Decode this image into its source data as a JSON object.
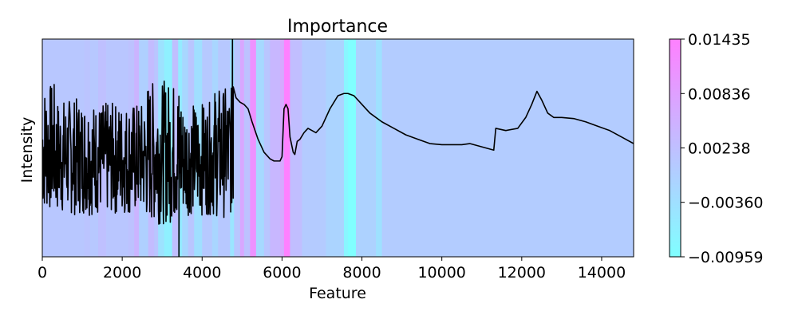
{
  "chart_data": {
    "type": "line",
    "title": "Importance",
    "xlabel": "Feature",
    "ylabel": "Intensity",
    "xlim": [
      0,
      14800
    ],
    "ylim": [
      0,
      1
    ],
    "x_ticks": [
      0,
      2000,
      4000,
      6000,
      8000,
      10000,
      12000,
      14000
    ],
    "x_tick_labels": [
      "0",
      "2000",
      "4000",
      "6000",
      "8000",
      "10000",
      "12000",
      "14000"
    ],
    "y_ticks_shown": false,
    "grid": false,
    "legend": "none",
    "colorbar": {
      "min": -0.00959,
      "max": 0.01435,
      "ticks": [
        0.01435,
        0.00836,
        0.00238,
        -0.0036,
        -0.00959
      ],
      "tick_labels": [
        "0.01435",
        "0.00836",
        "0.00238",
        "−0.00360",
        "−0.00959"
      ],
      "colormap": "cool",
      "alpha": 0.5
    },
    "importance_bands": [
      {
        "x0": 0,
        "x1": 1050,
        "value": 0.0009
      },
      {
        "x0": 1050,
        "x1": 1200,
        "value": 0.0016
      },
      {
        "x0": 1200,
        "x1": 1400,
        "value": 0.0008
      },
      {
        "x0": 1400,
        "x1": 1600,
        "value": 0.0022
      },
      {
        "x0": 1600,
        "x1": 2150,
        "value": 0.0012
      },
      {
        "x0": 2150,
        "x1": 2300,
        "value": 0.0019
      },
      {
        "x0": 2300,
        "x1": 2420,
        "value": 0.0045
      },
      {
        "x0": 2420,
        "x1": 2650,
        "value": -0.0008
      },
      {
        "x0": 2650,
        "x1": 2800,
        "value": 0.003
      },
      {
        "x0": 2800,
        "x1": 2900,
        "value": 0.0012
      },
      {
        "x0": 2900,
        "x1": 3050,
        "value": -0.0042
      },
      {
        "x0": 3050,
        "x1": 3250,
        "value": -0.0067
      },
      {
        "x0": 3250,
        "x1": 3400,
        "value": 0.0024
      },
      {
        "x0": 3400,
        "x1": 3500,
        "value": -0.0058
      },
      {
        "x0": 3500,
        "x1": 3650,
        "value": -0.002
      },
      {
        "x0": 3650,
        "x1": 3800,
        "value": 0.0011
      },
      {
        "x0": 3800,
        "x1": 4000,
        "value": -0.0035
      },
      {
        "x0": 4000,
        "x1": 4250,
        "value": 0.0005
      },
      {
        "x0": 4250,
        "x1": 4400,
        "value": -0.0018
      },
      {
        "x0": 4400,
        "x1": 4700,
        "value": 0.0008
      },
      {
        "x0": 4700,
        "x1": 4800,
        "value": -0.0046
      },
      {
        "x0": 4800,
        "x1": 4950,
        "value": 0.001
      },
      {
        "x0": 4950,
        "x1": 5050,
        "value": 0.007
      },
      {
        "x0": 5050,
        "x1": 5200,
        "value": 0.002
      },
      {
        "x0": 5200,
        "x1": 5350,
        "value": 0.011
      },
      {
        "x0": 5350,
        "x1": 5550,
        "value": -0.0025
      },
      {
        "x0": 5550,
        "x1": 5700,
        "value": 0.0012
      },
      {
        "x0": 5700,
        "x1": 5950,
        "value": 0.004
      },
      {
        "x0": 5950,
        "x1": 6050,
        "value": 0.0065
      },
      {
        "x0": 6050,
        "x1": 6200,
        "value": 0.0143
      },
      {
        "x0": 6200,
        "x1": 6500,
        "value": 0.0026
      },
      {
        "x0": 6500,
        "x1": 7100,
        "value": 0.0002
      },
      {
        "x0": 7100,
        "x1": 7550,
        "value": -0.0015
      },
      {
        "x0": 7550,
        "x1": 7650,
        "value": -0.0078
      },
      {
        "x0": 7650,
        "x1": 7850,
        "value": -0.0095
      },
      {
        "x0": 7850,
        "x1": 8350,
        "value": -0.0012
      },
      {
        "x0": 8350,
        "x1": 8500,
        "value": -0.004
      },
      {
        "x0": 8500,
        "x1": 14800,
        "value": 0.0
      }
    ],
    "series": [
      {
        "noisy_segment": {
          "x_start": 0,
          "x_end": 4780,
          "seed": 7
        },
        "spikes": [
          {
            "x": 4760,
            "y": 1.02
          },
          {
            "x": 4778,
            "y": 0.78
          },
          {
            "x": 3420,
            "y": -0.02
          },
          {
            "x": 3300,
            "y": 0.25
          }
        ],
        "points": [
          [
            4780,
            0.78
          ],
          [
            4850,
            0.73
          ],
          [
            4950,
            0.71
          ],
          [
            5050,
            0.7
          ],
          [
            5150,
            0.68
          ],
          [
            5250,
            0.62
          ],
          [
            5400,
            0.54
          ],
          [
            5550,
            0.48
          ],
          [
            5700,
            0.45
          ],
          [
            5800,
            0.44
          ],
          [
            5950,
            0.44
          ],
          [
            6000,
            0.46
          ],
          [
            6050,
            0.68
          ],
          [
            6100,
            0.7
          ],
          [
            6150,
            0.68
          ],
          [
            6200,
            0.55
          ],
          [
            6280,
            0.48
          ],
          [
            6320,
            0.47
          ],
          [
            6380,
            0.53
          ],
          [
            6450,
            0.54
          ],
          [
            6550,
            0.57
          ],
          [
            6650,
            0.59
          ],
          [
            6750,
            0.58
          ],
          [
            6850,
            0.57
          ],
          [
            7000,
            0.6
          ],
          [
            7200,
            0.68
          ],
          [
            7400,
            0.74
          ],
          [
            7550,
            0.75
          ],
          [
            7650,
            0.75
          ],
          [
            7800,
            0.74
          ],
          [
            8000,
            0.7
          ],
          [
            8200,
            0.66
          ],
          [
            8500,
            0.62
          ],
          [
            8800,
            0.59
          ],
          [
            9100,
            0.56
          ],
          [
            9400,
            0.54
          ],
          [
            9700,
            0.52
          ],
          [
            10000,
            0.515
          ],
          [
            10300,
            0.515
          ],
          [
            10500,
            0.515
          ],
          [
            10700,
            0.52
          ],
          [
            10900,
            0.51
          ],
          [
            11100,
            0.5
          ],
          [
            11300,
            0.49
          ],
          [
            11350,
            0.59
          ],
          [
            11600,
            0.58
          ],
          [
            11900,
            0.59
          ],
          [
            12100,
            0.64
          ],
          [
            12250,
            0.7
          ],
          [
            12380,
            0.76
          ],
          [
            12500,
            0.72
          ],
          [
            12650,
            0.66
          ],
          [
            12800,
            0.64
          ],
          [
            13000,
            0.64
          ],
          [
            13300,
            0.635
          ],
          [
            13600,
            0.62
          ],
          [
            13900,
            0.6
          ],
          [
            14200,
            0.58
          ],
          [
            14500,
            0.55
          ],
          [
            14800,
            0.52
          ]
        ]
      }
    ]
  }
}
